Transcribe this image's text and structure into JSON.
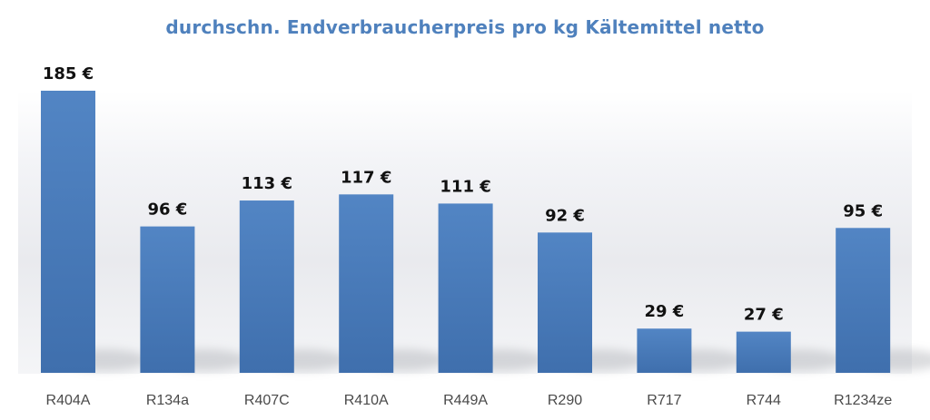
{
  "chart_data": {
    "type": "bar",
    "title": "durchschn. Endverbraucherpreis pro kg Kältemittel netto",
    "categories": [
      "R404A",
      "R134a",
      "R407C",
      "R410A",
      "R449A",
      "R290",
      "R717",
      "R744",
      "R1234ze"
    ],
    "values": [
      185,
      96,
      113,
      117,
      111,
      92,
      29,
      27,
      95
    ],
    "value_labels": [
      "185 €",
      "96 €",
      "113 €",
      "117 €",
      "111 €",
      "92 €",
      "29 €",
      "27 €",
      "95 €"
    ],
    "xlabel": "",
    "ylabel": "",
    "ylim": [
      0,
      185
    ],
    "grid": false,
    "legend": "none",
    "colors": {
      "bar": "#4f81bd",
      "bar_dark": "#3b6aa5",
      "title": "#4f81bd"
    }
  }
}
